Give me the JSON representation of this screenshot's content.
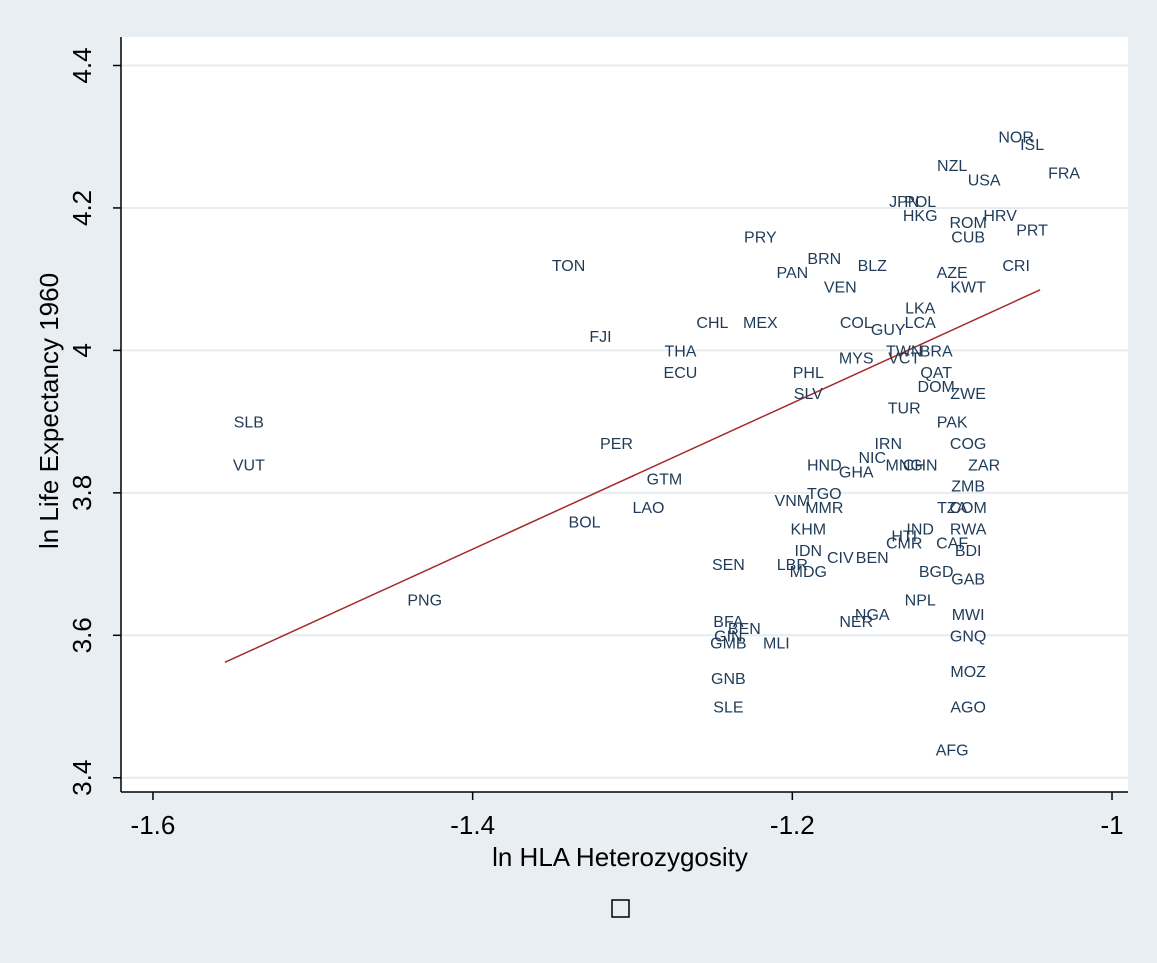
{
  "chart_data": {
    "type": "scatter",
    "xlabel": "ln HLA Heterozygosity",
    "ylabel": "ln Life Expectancy 1960",
    "xlim": [
      -1.62,
      -0.99
    ],
    "ylim": [
      3.38,
      4.44
    ],
    "x_ticks": [
      -1.6,
      -1.4,
      -1.2,
      -1.0
    ],
    "x_tick_labels": [
      "-1.6",
      "-1.4",
      "-1.2",
      "-1"
    ],
    "y_ticks": [
      3.4,
      3.6,
      3.8,
      4.0,
      4.2,
      4.4
    ],
    "y_tick_labels": [
      "3.4",
      "3.6",
      "3.8",
      "4",
      "4.2",
      "4.4"
    ],
    "grid": "horizontal",
    "legend": "none",
    "colors": {
      "outer_background": "#e9eef2",
      "plot_background": "#ffffff",
      "grid": "#e6ecef",
      "labels": "#1f3b57",
      "fit_line": "#a52a2a"
    },
    "fit_line": {
      "x": [
        -1.555,
        -1.045
      ],
      "y": [
        3.562,
        4.085
      ]
    },
    "points": [
      {
        "label": "SLB",
        "x": -1.54,
        "y": 3.9
      },
      {
        "label": "VUT",
        "x": -1.54,
        "y": 3.84
      },
      {
        "label": "PNG",
        "x": -1.43,
        "y": 3.65
      },
      {
        "label": "TON",
        "x": -1.34,
        "y": 4.12
      },
      {
        "label": "FJI",
        "x": -1.32,
        "y": 4.02
      },
      {
        "label": "PER",
        "x": -1.31,
        "y": 3.87
      },
      {
        "label": "BOL",
        "x": -1.33,
        "y": 3.76
      },
      {
        "label": "GTM",
        "x": -1.28,
        "y": 3.82
      },
      {
        "label": "LAO",
        "x": -1.29,
        "y": 3.78
      },
      {
        "label": "THA",
        "x": -1.27,
        "y": 4.0
      },
      {
        "label": "ECU",
        "x": -1.27,
        "y": 3.97
      },
      {
        "label": "CHL",
        "x": -1.25,
        "y": 4.04
      },
      {
        "label": "MEX",
        "x": -1.22,
        "y": 4.04
      },
      {
        "label": "PRY",
        "x": -1.22,
        "y": 4.16
      },
      {
        "label": "PAN",
        "x": -1.2,
        "y": 4.11
      },
      {
        "label": "BRN",
        "x": -1.18,
        "y": 4.13
      },
      {
        "label": "VEN",
        "x": -1.17,
        "y": 4.09
      },
      {
        "label": "BLZ",
        "x": -1.15,
        "y": 4.12
      },
      {
        "label": "COL",
        "x": -1.16,
        "y": 4.04
      },
      {
        "label": "MYS",
        "x": -1.16,
        "y": 3.99
      },
      {
        "label": "PHL",
        "x": -1.19,
        "y": 3.97
      },
      {
        "label": "SLV",
        "x": -1.19,
        "y": 3.94
      },
      {
        "label": "SEN",
        "x": -1.24,
        "y": 3.7
      },
      {
        "label": "BFA",
        "x": -1.24,
        "y": 3.62
      },
      {
        "label": "BEN",
        "x": -1.23,
        "y": 3.61
      },
      {
        "label": "GIN",
        "x": -1.24,
        "y": 3.6
      },
      {
        "label": "GMB",
        "x": -1.24,
        "y": 3.59
      },
      {
        "label": "MLI",
        "x": -1.21,
        "y": 3.59
      },
      {
        "label": "GNB",
        "x": -1.24,
        "y": 3.54
      },
      {
        "label": "SLE",
        "x": -1.24,
        "y": 3.5
      },
      {
        "label": "LBR",
        "x": -1.2,
        "y": 3.7
      },
      {
        "label": "MDG",
        "x": -1.19,
        "y": 3.69
      },
      {
        "label": "CIV",
        "x": -1.17,
        "y": 3.71
      },
      {
        "label": "BEN",
        "x": -1.15,
        "y": 3.71
      },
      {
        "label": "IDN",
        "x": -1.19,
        "y": 3.72
      },
      {
        "label": "KHM",
        "x": -1.19,
        "y": 3.75
      },
      {
        "label": "VNM",
        "x": -1.2,
        "y": 3.79
      },
      {
        "label": "MMR",
        "x": -1.18,
        "y": 3.78
      },
      {
        "label": "TGO",
        "x": -1.18,
        "y": 3.8
      },
      {
        "label": "HND",
        "x": -1.18,
        "y": 3.84
      },
      {
        "label": "GHA",
        "x": -1.16,
        "y": 3.83
      },
      {
        "label": "NIC",
        "x": -1.15,
        "y": 3.85
      },
      {
        "label": "MNG",
        "x": -1.13,
        "y": 3.84
      },
      {
        "label": "IRN",
        "x": -1.14,
        "y": 3.87
      },
      {
        "label": "TUR",
        "x": -1.13,
        "y": 3.92
      },
      {
        "label": "NER",
        "x": -1.16,
        "y": 3.62
      },
      {
        "label": "NGA",
        "x": -1.15,
        "y": 3.63
      },
      {
        "label": "NPL",
        "x": -1.12,
        "y": 3.65
      },
      {
        "label": "HTI",
        "x": -1.13,
        "y": 3.74
      },
      {
        "label": "IND",
        "x": -1.12,
        "y": 3.75
      },
      {
        "label": "CMR",
        "x": -1.13,
        "y": 3.73
      },
      {
        "label": "BGD",
        "x": -1.11,
        "y": 3.69
      },
      {
        "label": "MWI",
        "x": -1.09,
        "y": 3.63
      },
      {
        "label": "GNQ",
        "x": -1.09,
        "y": 3.6
      },
      {
        "label": "MOZ",
        "x": -1.09,
        "y": 3.55
      },
      {
        "label": "AGO",
        "x": -1.09,
        "y": 3.5
      },
      {
        "label": "AFG",
        "x": -1.1,
        "y": 3.44
      },
      {
        "label": "GAB",
        "x": -1.09,
        "y": 3.68
      },
      {
        "label": "TZA",
        "x": -1.1,
        "y": 3.78
      },
      {
        "label": "RWA",
        "x": -1.09,
        "y": 3.75
      },
      {
        "label": "BDI",
        "x": -1.09,
        "y": 3.72
      },
      {
        "label": "CAF",
        "x": -1.1,
        "y": 3.73
      },
      {
        "label": "COM",
        "x": -1.09,
        "y": 3.78
      },
      {
        "label": "ZMB",
        "x": -1.09,
        "y": 3.81
      },
      {
        "label": "ZAR",
        "x": -1.08,
        "y": 3.84
      },
      {
        "label": "CHN",
        "x": -1.12,
        "y": 3.84
      },
      {
        "label": "COG",
        "x": -1.09,
        "y": 3.87
      },
      {
        "label": "PAK",
        "x": -1.1,
        "y": 3.9
      },
      {
        "label": "DOM",
        "x": -1.11,
        "y": 3.95
      },
      {
        "label": "QAT",
        "x": -1.11,
        "y": 3.97
      },
      {
        "label": "ZWE",
        "x": -1.09,
        "y": 3.94
      },
      {
        "label": "BRA",
        "x": -1.11,
        "y": 4.0
      },
      {
        "label": "TWN",
        "x": -1.13,
        "y": 4.0
      },
      {
        "label": "VCT",
        "x": -1.13,
        "y": 3.99
      },
      {
        "label": "GUY",
        "x": -1.14,
        "y": 4.03
      },
      {
        "label": "LCA",
        "x": -1.12,
        "y": 4.04
      },
      {
        "label": "LKA",
        "x": -1.12,
        "y": 4.06
      },
      {
        "label": "KWT",
        "x": -1.09,
        "y": 4.09
      },
      {
        "label": "AZE",
        "x": -1.1,
        "y": 4.11
      },
      {
        "label": "CRI",
        "x": -1.06,
        "y": 4.12
      },
      {
        "label": "PRT",
        "x": -1.05,
        "y": 4.17
      },
      {
        "label": "CUB",
        "x": -1.09,
        "y": 4.16
      },
      {
        "label": "ROM",
        "x": -1.09,
        "y": 4.18
      },
      {
        "label": "HRV",
        "x": -1.07,
        "y": 4.19
      },
      {
        "label": "JPN",
        "x": -1.13,
        "y": 4.21
      },
      {
        "label": "POL",
        "x": -1.12,
        "y": 4.21
      },
      {
        "label": "HKG",
        "x": -1.12,
        "y": 4.19
      },
      {
        "label": "NZL",
        "x": -1.1,
        "y": 4.26
      },
      {
        "label": "USA",
        "x": -1.08,
        "y": 4.24
      },
      {
        "label": "NOR",
        "x": -1.06,
        "y": 4.3
      },
      {
        "label": "ISL",
        "x": -1.05,
        "y": 4.29
      },
      {
        "label": "FRA",
        "x": -1.03,
        "y": 4.25
      }
    ]
  }
}
